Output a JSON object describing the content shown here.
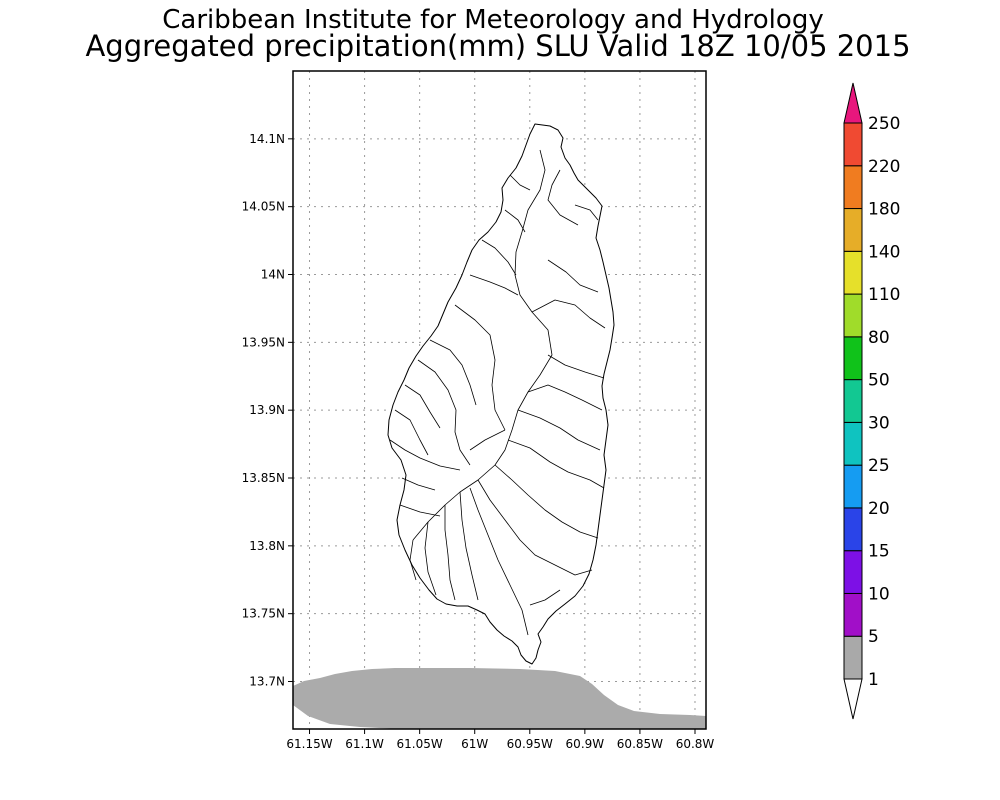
{
  "header": {
    "title": "Caribbean Institute for Meteorology and Hydrology",
    "subtitle": "Aggregated precipitation(mm) SLU Valid 18Z 10/05 2015"
  },
  "map": {
    "lon_range": [
      -61.165,
      -60.79
    ],
    "lat_range": [
      13.665,
      14.15
    ],
    "lon_ticks": [
      {
        "value": -61.15,
        "label": "61.15W"
      },
      {
        "value": -61.1,
        "label": "61.1W"
      },
      {
        "value": -61.05,
        "label": "61.05W"
      },
      {
        "value": -61.0,
        "label": "61W"
      },
      {
        "value": -60.95,
        "label": "60.95W"
      },
      {
        "value": -60.9,
        "label": "60.9W"
      },
      {
        "value": -60.85,
        "label": "60.85W"
      },
      {
        "value": -60.8,
        "label": "60.8W"
      }
    ],
    "lat_ticks": [
      {
        "value": 14.1,
        "label": "14.1N"
      },
      {
        "value": 14.05,
        "label": "14.05N"
      },
      {
        "value": 14.0,
        "label": "14N"
      },
      {
        "value": 13.95,
        "label": "13.95N"
      },
      {
        "value": 13.9,
        "label": "13.9N"
      },
      {
        "value": 13.85,
        "label": "13.85N"
      },
      {
        "value": 13.8,
        "label": "13.8N"
      },
      {
        "value": 13.75,
        "label": "13.75N"
      },
      {
        "value": 13.7,
        "label": "13.7N"
      }
    ],
    "grid": true,
    "precip_fill_color": "#ababab",
    "precip_band": "1-5 mm"
  },
  "colorbar": {
    "levels": [
      "1",
      "5",
      "10",
      "15",
      "20",
      "25",
      "30",
      "50",
      "80",
      "110",
      "140",
      "180",
      "220",
      "250"
    ],
    "colors": [
      "#a9a9a9",
      "#a10fc8",
      "#7d10e6",
      "#2a44e8",
      "#159cf2",
      "#0fc3c0",
      "#12c892",
      "#10c21a",
      "#a0dc2a",
      "#e6e02a",
      "#e6ad28",
      "#f07c20",
      "#f04a32"
    ],
    "under_color": "#ffffff",
    "over_color": "#e8177d"
  }
}
